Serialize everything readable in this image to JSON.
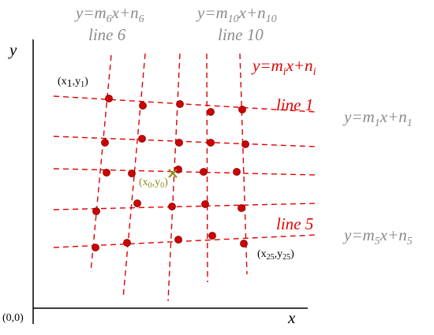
{
  "axes": {
    "y": "y",
    "x": "x",
    "origin": "(0,0)"
  },
  "lines": {
    "line6": "line 6",
    "line10": "line 10",
    "line1": "line 1",
    "line5": "line 5"
  },
  "equations": {
    "line6": [
      "y=m",
      "6",
      "x+n",
      "6"
    ],
    "line10": [
      "y=m",
      "10",
      "x+n",
      "10"
    ],
    "generic": [
      "y=m",
      "i",
      "x+n",
      "i"
    ],
    "line1": [
      "y=m",
      "1",
      "x+n",
      "1"
    ],
    "line5": [
      "y=m",
      "5",
      "x+n",
      "5"
    ]
  },
  "points": {
    "p1": [
      "(x",
      "1",
      ",y",
      "1",
      ")"
    ],
    "p0": [
      "(x",
      "0",
      ",y",
      "0",
      ")"
    ],
    "p25": [
      "(x",
      "25",
      ",y",
      "25",
      ")"
    ]
  }
}
